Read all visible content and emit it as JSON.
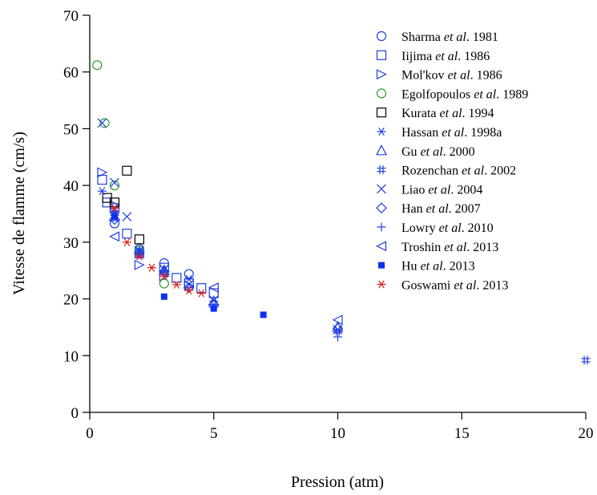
{
  "chart_data": {
    "type": "scatter",
    "title": "",
    "xlabel": "Pression (atm)",
    "ylabel": "Vitesse de flamme (cm/s)",
    "xlim": [
      0,
      20
    ],
    "ylim": [
      0,
      70
    ],
    "xticks": [
      0,
      5,
      10,
      15,
      20
    ],
    "yticks": [
      0,
      10,
      20,
      30,
      40,
      50,
      60,
      70
    ],
    "grid": false,
    "legend_position": "top-right",
    "series": [
      {
        "name": "Sharma et al. 1981",
        "author": "Sharma",
        "year": "1981",
        "marker": "circle",
        "color": "#1f3fe0",
        "points": [
          [
            1.0,
            33.3
          ],
          [
            2.0,
            28.8
          ],
          [
            3.0,
            26.3
          ],
          [
            4.0,
            24.4
          ]
        ]
      },
      {
        "name": "Iijima et al. 1986",
        "author": "Iijima",
        "year": "1986",
        "marker": "square",
        "color": "#1f3fe0",
        "points": [
          [
            0.5,
            41.0
          ],
          [
            0.7,
            37.0
          ],
          [
            1.0,
            36.0
          ],
          [
            1.5,
            31.5
          ],
          [
            2.0,
            28.0
          ],
          [
            3.0,
            25.5
          ],
          [
            3.5,
            23.7
          ],
          [
            4.0,
            22.8
          ],
          [
            4.5,
            21.9
          ],
          [
            5.0,
            21.0
          ]
        ]
      },
      {
        "name": "Mol'kov et al. 1986",
        "author": "Mol'kov",
        "year": "1986",
        "marker": "triangle-right",
        "color": "#1f3fe0",
        "points": [
          [
            0.5,
            42.3
          ],
          [
            1.0,
            36.5
          ],
          [
            2.0,
            26.0
          ],
          [
            3.0,
            24.0
          ],
          [
            4.0,
            22.3
          ]
        ]
      },
      {
        "name": "Egolfopoulos et al. 1989",
        "author": "Egolfopoulos",
        "year": "1989",
        "marker": "circle",
        "color": "#2a9a2a",
        "points": [
          [
            0.3,
            61.2
          ],
          [
            0.6,
            51.0
          ],
          [
            1.0,
            40.0
          ],
          [
            2.0,
            28.5
          ],
          [
            3.0,
            22.7
          ]
        ]
      },
      {
        "name": "Kurata et al. 1994",
        "author": "Kurata",
        "year": "1994",
        "marker": "square",
        "color": "#000000",
        "points": [
          [
            0.7,
            37.8
          ],
          [
            1.0,
            37.0
          ],
          [
            1.5,
            42.6
          ],
          [
            2.0,
            30.5
          ]
        ]
      },
      {
        "name": "Hassan et al. 1998a",
        "author": "Hassan",
        "year": "1998a",
        "marker": "asterisk",
        "color": "#1f3fe0",
        "points": [
          [
            0.5,
            39.0
          ],
          [
            1.0,
            35.0
          ],
          [
            2.0,
            28.0
          ],
          [
            3.0,
            25.0
          ],
          [
            4.0,
            23.5
          ]
        ]
      },
      {
        "name": "Gu et al. 2000",
        "author": "Gu",
        "year": "2000",
        "marker": "triangle-up",
        "color": "#1f3fe0",
        "points": [
          [
            1.0,
            34.5
          ],
          [
            3.0,
            25.0
          ],
          [
            5.0,
            19.5
          ],
          [
            10.0,
            15.0
          ]
        ]
      },
      {
        "name": "Rozenchan et al. 2002",
        "author": "Rozenchan",
        "year": "2002",
        "marker": "hash",
        "color": "#1f3fe0",
        "points": [
          [
            1.0,
            35.0
          ],
          [
            2.0,
            28.0
          ],
          [
            5.0,
            19.3
          ],
          [
            10.0,
            14.3
          ],
          [
            20.0,
            9.2
          ]
        ]
      },
      {
        "name": "Liao et al. 2004",
        "author": "Liao",
        "year": "2004",
        "marker": "x",
        "color": "#1f3fe0",
        "points": [
          [
            0.5,
            51.0
          ],
          [
            1.0,
            40.5
          ],
          [
            1.5,
            34.5
          ],
          [
            2.0,
            28.5
          ],
          [
            3.0,
            25.2
          ],
          [
            4.0,
            22.5
          ],
          [
            5.0,
            19.8
          ],
          [
            10.0,
            14.6
          ]
        ]
      },
      {
        "name": "Han et al. 2007",
        "author": "Han",
        "year": "2007",
        "marker": "diamond",
        "color": "#1f3fe0",
        "points": [
          [
            1.0,
            34.0
          ],
          [
            2.0,
            28.2
          ],
          [
            3.0,
            24.8
          ],
          [
            4.0,
            22.0
          ],
          [
            5.0,
            19.0
          ],
          [
            10.0,
            14.8
          ]
        ]
      },
      {
        "name": "Lowry et al. 2010",
        "author": "Lowry",
        "year": "2010",
        "marker": "plus",
        "color": "#1f3fe0",
        "points": [
          [
            1.0,
            35.5
          ],
          [
            2.0,
            28.5
          ],
          [
            3.0,
            25.0
          ],
          [
            5.0,
            18.5
          ],
          [
            10.0,
            13.3
          ]
        ]
      },
      {
        "name": "Troshin et al. 2013",
        "author": "Troshin",
        "year": "2013",
        "marker": "triangle-left",
        "color": "#1f3fe0",
        "points": [
          [
            1.0,
            31.0
          ],
          [
            5.0,
            22.0
          ],
          [
            10.0,
            16.3
          ]
        ]
      },
      {
        "name": "Hu et al. 2013",
        "author": "Hu",
        "year": "2013",
        "marker": "filled-square",
        "color": "#1030f0",
        "points": [
          [
            1.0,
            34.5
          ],
          [
            3.0,
            20.4
          ],
          [
            5.0,
            18.3
          ],
          [
            7.0,
            17.2
          ]
        ]
      },
      {
        "name": "Goswami et al. 2013",
        "author": "Goswami",
        "year": "2013",
        "marker": "asterisk",
        "color": "#e01818",
        "points": [
          [
            1.0,
            36.0
          ],
          [
            1.5,
            30.0
          ],
          [
            2.0,
            27.5
          ],
          [
            2.5,
            25.5
          ],
          [
            3.0,
            24.0
          ],
          [
            3.5,
            22.5
          ],
          [
            4.0,
            21.5
          ],
          [
            4.5,
            21.0
          ]
        ]
      }
    ]
  }
}
